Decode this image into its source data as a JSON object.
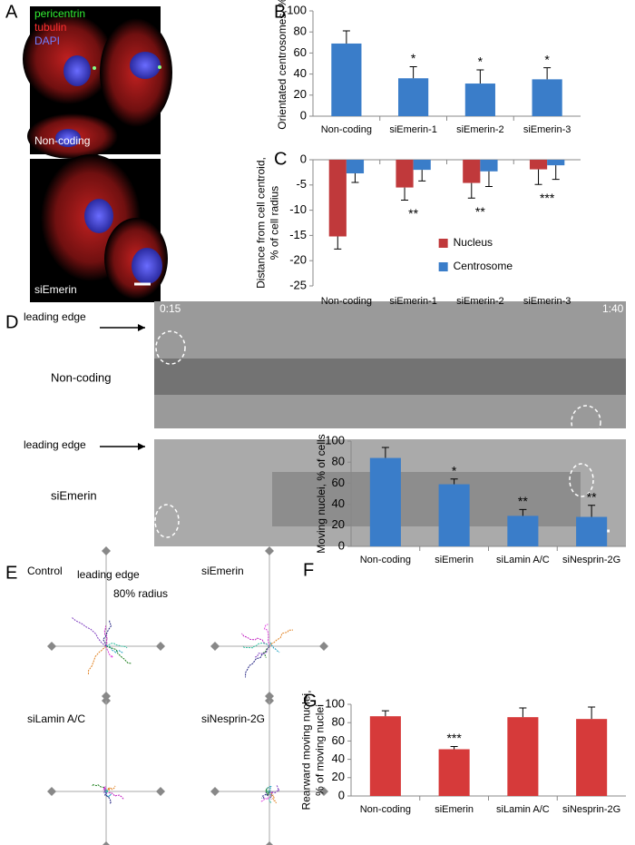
{
  "figure": {
    "panels": [
      "A",
      "B",
      "C",
      "D",
      "E",
      "F",
      "G"
    ],
    "a_labels": {
      "pericentrin": "pericentrin",
      "tubulin": "tubulin",
      "dapi": "DAPI",
      "top": "Non-coding",
      "bottom": "siEmerin"
    },
    "d_labels": {
      "edge_top": "leading edge",
      "top": "Non-coding",
      "edge_bottom": "leading edge",
      "bottom": "siEmerin",
      "time_start": "0:15",
      "time_end": "1:40"
    },
    "e_labels": {
      "control": "Control",
      "edge": "leading edge",
      "radius": "80% radius",
      "siemerin": "siEmerin",
      "silamin": "siLamin A/C",
      "sinesprin": "siNesprin-2G"
    }
  },
  "chart_data": [
    {
      "type": "bar",
      "y_label": [
        "Orientated centrosomes, %"
      ],
      "categories": [
        "Non-coding",
        "siEmerin-1",
        "siEmerin-2",
        "siEmerin-3"
      ],
      "values": [
        69,
        36,
        31,
        35
      ],
      "errors": [
        12,
        11,
        13,
        11
      ],
      "color": "#3a7dc9",
      "annotations": [
        null,
        "*",
        "*",
        "*"
      ],
      "ylim": [
        0,
        100
      ],
      "yticks": [
        0,
        20,
        40,
        60,
        80,
        100
      ]
    },
    {
      "type": "bar",
      "y_label": [
        "Distance from cell centroid,",
        "% of cell radius"
      ],
      "categories": [
        "Non-coding",
        "siEmerin-1",
        "siEmerin-2",
        "siEmerin-3"
      ],
      "series": [
        {
          "name": "Nucleus",
          "color": "#c0393b",
          "values": [
            -15.2,
            -5.5,
            -4.6,
            -1.9
          ],
          "errors": [
            2.5,
            2.5,
            3,
            3
          ]
        },
        {
          "name": "Centrosome",
          "color": "#3a7dc9",
          "values": [
            -2.7,
            -2.0,
            -2.3,
            -1.1
          ],
          "errors": [
            1.8,
            2.2,
            3,
            2.8
          ]
        }
      ],
      "annotations": [
        null,
        "**",
        "**",
        "***"
      ],
      "legend": "lower-right",
      "ylim": [
        -25,
        0
      ],
      "yticks": [
        0,
        -5,
        -10,
        -15,
        -20,
        -25
      ]
    },
    {
      "type": "bar",
      "y_label": [
        "Moving nuclei, % of cells"
      ],
      "categories": [
        "Non-coding",
        "siEmerin",
        "siLamin A/C",
        "siNesprin-2G"
      ],
      "values": [
        84,
        59,
        29,
        28
      ],
      "errors": [
        10,
        5,
        6,
        11
      ],
      "color": "#3a7dc9",
      "annotations": [
        null,
        "*",
        "**",
        "**"
      ],
      "ylim": [
        0,
        100
      ],
      "yticks": [
        0,
        20,
        40,
        60,
        80,
        100
      ]
    },
    {
      "type": "bar",
      "y_label": [
        "Rearward moving nuclei,",
        "% of moving nuclei"
      ],
      "categories": [
        "Non-coding",
        "siEmerin",
        "siLamin A/C",
        "siNesprin-2G"
      ],
      "values": [
        87,
        51,
        86,
        84
      ],
      "errors": [
        6,
        3,
        10,
        13
      ],
      "color": "#d63a3a",
      "annotations": [
        null,
        "***",
        null,
        null
      ],
      "ylim": [
        0,
        100
      ],
      "yticks": [
        0,
        20,
        40,
        60,
        80,
        100
      ]
    }
  ]
}
